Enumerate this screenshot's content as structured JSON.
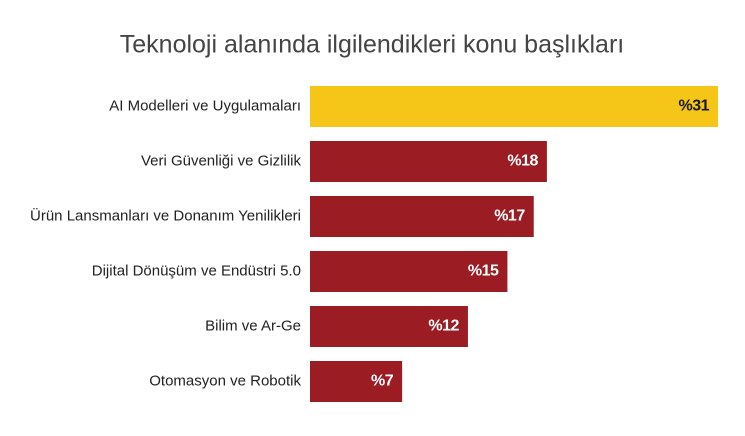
{
  "chart_data": {
    "type": "bar",
    "orientation": "horizontal",
    "title": "Teknoloji alanında ilgilendikleri konu başlıkları",
    "categories": [
      "AI Modelleri ve Uygulamaları",
      "Veri Güvenliği ve Gizlilik",
      "Ürün Lansmanları ve Donanım Yenilikleri",
      "Dijital Dönüşüm ve Endüstri 5.0",
      "Bilim ve Ar-Ge",
      "Otomasyon ve Robotik"
    ],
    "values": [
      31,
      18,
      17,
      15,
      12,
      7
    ],
    "value_labels": [
      "%31",
      "%18",
      "%17",
      "%15",
      "%12",
      "%7"
    ],
    "colors": [
      "#f5c518",
      "#9b1c22",
      "#9b1c22",
      "#9b1c22",
      "#9b1c22",
      "#9b1c22"
    ]
  }
}
